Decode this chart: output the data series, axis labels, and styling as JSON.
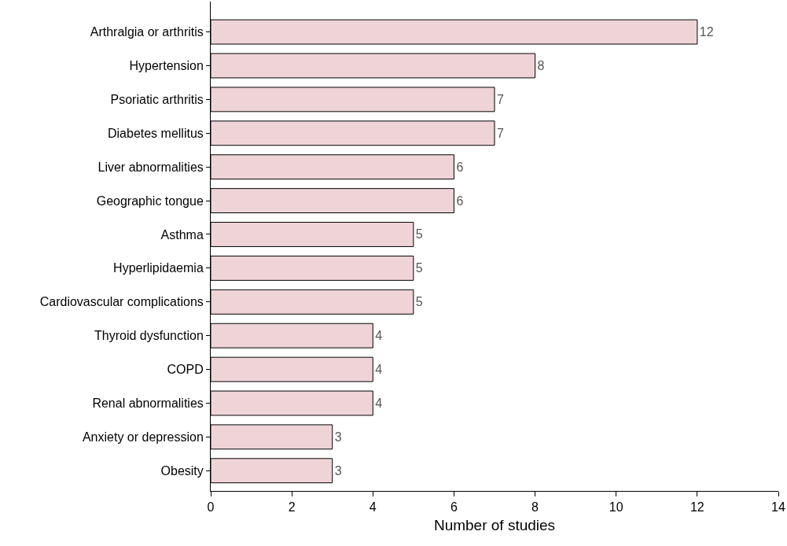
{
  "chart_data": {
    "type": "bar",
    "orientation": "horizontal",
    "xlabel": "Number of studies",
    "categories": [
      "Arthralgia or arthritis",
      "Hypertension",
      "Psoriatic arthritis",
      "Diabetes mellitus",
      "Liver abnormalities",
      "Geographic tongue",
      "Asthma",
      "Hyperlipidaemia",
      "Cardiovascular complications",
      "Thyroid dysfunction",
      "COPD",
      "Renal abnormalities",
      "Anxiety or depression",
      "Obesity"
    ],
    "values": [
      12,
      8,
      7,
      7,
      6,
      6,
      5,
      5,
      5,
      4,
      4,
      4,
      3,
      3
    ],
    "color": "#efd4d7",
    "data_labels": true,
    "xlim": [
      0,
      14
    ],
    "xticks": [
      0,
      2,
      4,
      6,
      8,
      10,
      12,
      14
    ]
  }
}
